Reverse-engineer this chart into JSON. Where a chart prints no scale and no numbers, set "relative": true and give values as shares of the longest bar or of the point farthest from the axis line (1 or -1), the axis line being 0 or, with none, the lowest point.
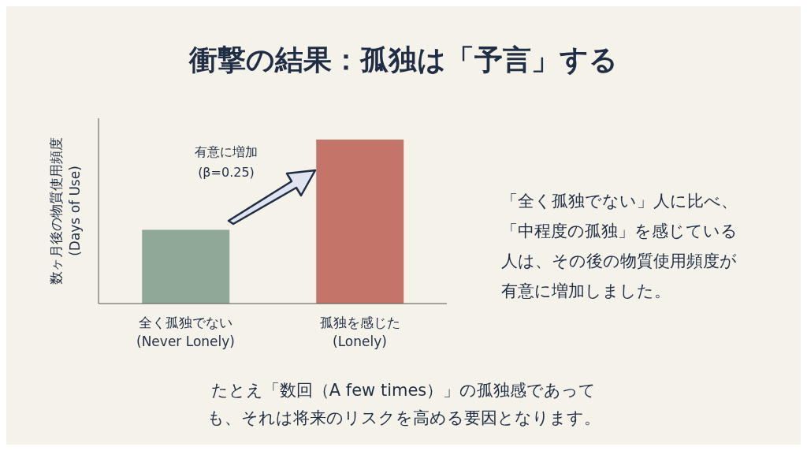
{
  "chart_data": {
    "type": "bar",
    "title": "衝撃の結果：孤独は「予言」する",
    "ylabel": "数ヶ月後の物質使用頻度\n(Days of Use)",
    "categories": [
      "全く孤独でない\n(Never Lonely)",
      "孤独を感じた\n(Lonely)"
    ],
    "values": [
      0.45,
      1
    ],
    "colors": [
      "#8fa898",
      "#c4756a"
    ],
    "relative": true,
    "grid": false,
    "legend": false,
    "annotations": [
      "有意に増加\n(β=0.25)",
      "「全く孤独でない」人に比べ、「中程度の孤独」を感じている人は、その後の物質使用頻度が有意に増加しました。",
      "たとえ「数回（A few times）」の孤独感であっても、それは将来のリスクを高める要因となります。"
    ]
  }
}
